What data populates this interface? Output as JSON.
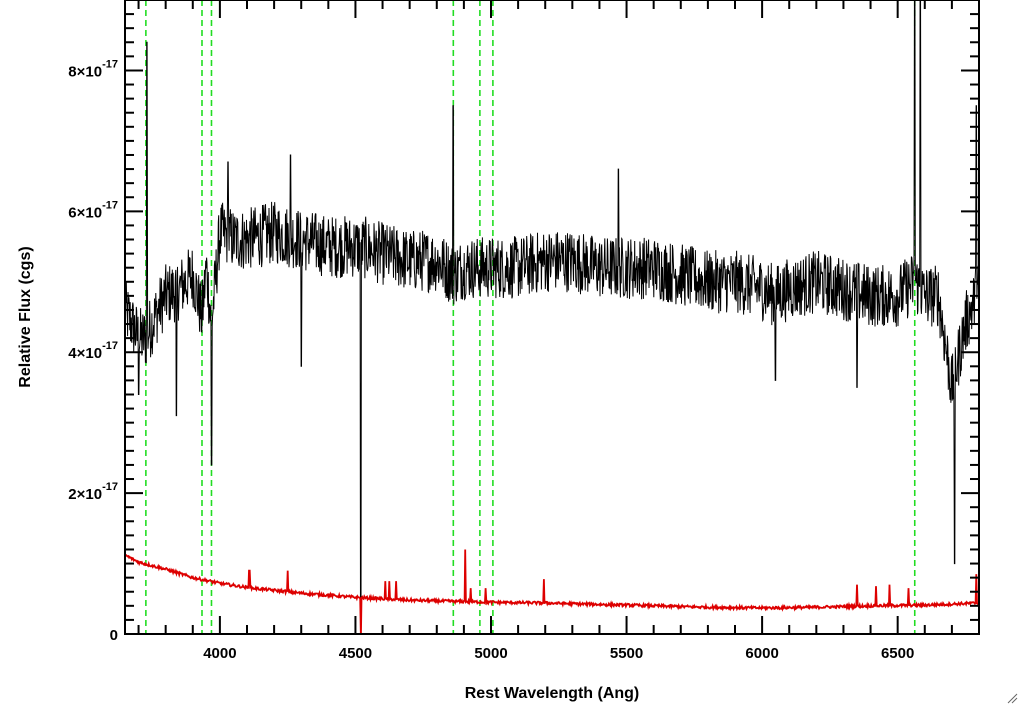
{
  "chart_data": {
    "type": "line",
    "xlabel": "Rest Wavelength (Ang)",
    "ylabel": "Relative Flux (cgs)",
    "xlim": [
      3650,
      6800
    ],
    "ylim": [
      0,
      9e-17
    ],
    "x_ticks": [
      {
        "value": 4000,
        "label": "4000"
      },
      {
        "value": 4500,
        "label": "4500"
      },
      {
        "value": 5000,
        "label": "5000"
      },
      {
        "value": 5500,
        "label": "5500"
      },
      {
        "value": 6000,
        "label": "6000"
      },
      {
        "value": 6500,
        "label": "6500"
      }
    ],
    "y_ticks": [
      {
        "value": 0,
        "mant": "0",
        "exp": ""
      },
      {
        "value": 2e-17,
        "mant": "2×10",
        "exp": "-17"
      },
      {
        "value": 4e-17,
        "mant": "4×10",
        "exp": "-17"
      },
      {
        "value": 6e-17,
        "mant": "6×10",
        "exp": "-17"
      },
      {
        "value": 8e-17,
        "mant": "8×10",
        "exp": "-17"
      }
    ],
    "grid": false,
    "line_marker_wavelengths": [
      3727,
      3934,
      3969,
      4861,
      4959,
      5007,
      6563
    ],
    "flux_spectrum": {
      "color": "#000000",
      "anchors_x": [
        3650,
        3700,
        3727,
        3760,
        3800,
        3850,
        3900,
        3934,
        3950,
        3969,
        4000,
        4050,
        4100,
        4200,
        4300,
        4400,
        4500,
        4520,
        4600,
        4700,
        4800,
        4861,
        4900,
        4959,
        5007,
        5100,
        5200,
        5300,
        5400,
        5500,
        5600,
        5700,
        5800,
        5900,
        6000,
        6050,
        6100,
        6200,
        6300,
        6400,
        6500,
        6563,
        6600,
        6650,
        6700,
        6750,
        6800
      ],
      "anchors_y": [
        4.6e-17,
        4.2e-17,
        4.2e-17,
        4.5e-17,
        4.8e-17,
        4.9e-17,
        5.1e-17,
        4.5e-17,
        5.2e-17,
        4.4e-17,
        5.7e-17,
        5.6e-17,
        5.6e-17,
        5.7e-17,
        5.6e-17,
        5.5e-17,
        5.5e-17,
        5.5e-17,
        5.4e-17,
        5.3e-17,
        5.3e-17,
        5.1e-17,
        5.2e-17,
        5.2e-17,
        5.2e-17,
        5.2e-17,
        5.3e-17,
        5.3e-17,
        5.2e-17,
        5.2e-17,
        5.2e-17,
        5.1e-17,
        5e-17,
        5e-17,
        4.9e-17,
        4.8e-17,
        4.9e-17,
        5e-17,
        4.9e-17,
        4.8e-17,
        4.8e-17,
        5e-17,
        4.8e-17,
        4.8e-17,
        3.5e-17,
        4.4e-17,
        4.9e-17
      ],
      "features": [
        {
          "x": 3730,
          "y": 8.4e-17
        },
        {
          "x": 3700,
          "y": 3.4e-17
        },
        {
          "x": 3840,
          "y": 3.1e-17
        },
        {
          "x": 3969,
          "y": 2.4e-17
        },
        {
          "x": 4030,
          "y": 6.7e-17
        },
        {
          "x": 4260,
          "y": 6.8e-17
        },
        {
          "x": 4300,
          "y": 3.8e-17
        },
        {
          "x": 4520,
          "y": 0
        },
        {
          "x": 4861,
          "y": 7.5e-17
        },
        {
          "x": 5470,
          "y": 6.6e-17
        },
        {
          "x": 6050,
          "y": 3.6e-17
        },
        {
          "x": 6350,
          "y": 3.5e-17
        },
        {
          "x": 6563,
          "y": 9.5e-17
        },
        {
          "x": 6583,
          "y": 9.5e-17
        },
        {
          "x": 6710,
          "y": 1e-17
        },
        {
          "x": 6790,
          "y": 7.5e-17
        }
      ]
    },
    "error_spectrum": {
      "color": "#dd0000",
      "anchors_x": [
        3650,
        3700,
        3800,
        3900,
        4000,
        4100,
        4200,
        4300,
        4400,
        4500,
        4600,
        4700,
        4800,
        4900,
        5000,
        5200,
        5400,
        5600,
        5800,
        6000,
        6200,
        6400,
        6600,
        6800
      ],
      "anchors_y": [
        1.12e-17,
        1.02e-17,
        9.2e-18,
        8e-18,
        7.2e-18,
        6.6e-18,
        6.2e-18,
        5.8e-18,
        5.5e-18,
        5.2e-18,
        5e-18,
        4.8e-18,
        4.7e-18,
        4.6e-18,
        4.5e-18,
        4.4e-18,
        4.2e-18,
        4e-18,
        3.8e-18,
        3.7e-18,
        3.8e-18,
        4e-18,
        4.1e-18,
        4.4e-18
      ],
      "spikes": [
        {
          "x": 4108,
          "y": 9e-18
        },
        {
          "x": 4250,
          "y": 9e-18
        },
        {
          "x": 4520,
          "y": -5e-19
        },
        {
          "x": 4610,
          "y": 7.5e-18
        },
        {
          "x": 4625,
          "y": 7.5e-18
        },
        {
          "x": 4650,
          "y": 7.5e-18
        },
        {
          "x": 4905,
          "y": 1.2e-17
        },
        {
          "x": 4925,
          "y": 6.5e-18
        },
        {
          "x": 4980,
          "y": 6.5e-18
        },
        {
          "x": 5195,
          "y": 7.8e-18
        },
        {
          "x": 6350,
          "y": 7e-18
        },
        {
          "x": 6420,
          "y": 6.8e-18
        },
        {
          "x": 6470,
          "y": 7e-18
        },
        {
          "x": 6540,
          "y": 6.5e-18
        },
        {
          "x": 6790,
          "y": 8.5e-18
        }
      ]
    },
    "marker_color": "#22dd22"
  }
}
